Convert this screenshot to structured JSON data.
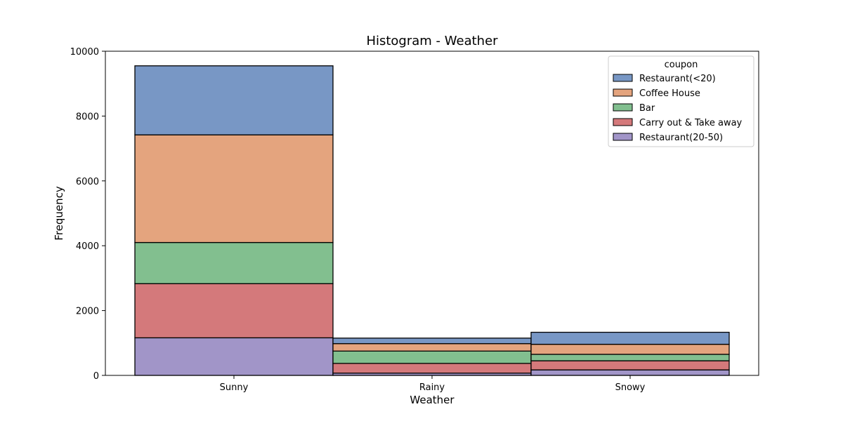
{
  "chart_data": {
    "type": "bar",
    "stacked": true,
    "title": "Histogram - Weather",
    "xlabel": "Weather",
    "ylabel": "Frequency",
    "categories": [
      "Sunny",
      "Rainy",
      "Snowy"
    ],
    "ylim": [
      0,
      10000
    ],
    "yticks": [
      0,
      2000,
      4000,
      6000,
      8000,
      10000
    ],
    "legend": {
      "title": "coupon",
      "placement": "top-right"
    },
    "series": [
      {
        "name": "Restaurant(20-50)",
        "color": "#a195c8",
        "values": [
          1160,
          70,
          170
        ]
      },
      {
        "name": "Carry out & Take away",
        "color": "#d4797b",
        "values": [
          1670,
          300,
          280
        ]
      },
      {
        "name": "Bar",
        "color": "#82bf8f",
        "values": [
          1270,
          380,
          200
        ]
      },
      {
        "name": "Coffee House",
        "color": "#e4a47e",
        "values": [
          3320,
          230,
          310
        ]
      },
      {
        "name": "Restaurant(<20)",
        "color": "#7897c5",
        "values": [
          2130,
          170,
          370
        ]
      }
    ]
  }
}
